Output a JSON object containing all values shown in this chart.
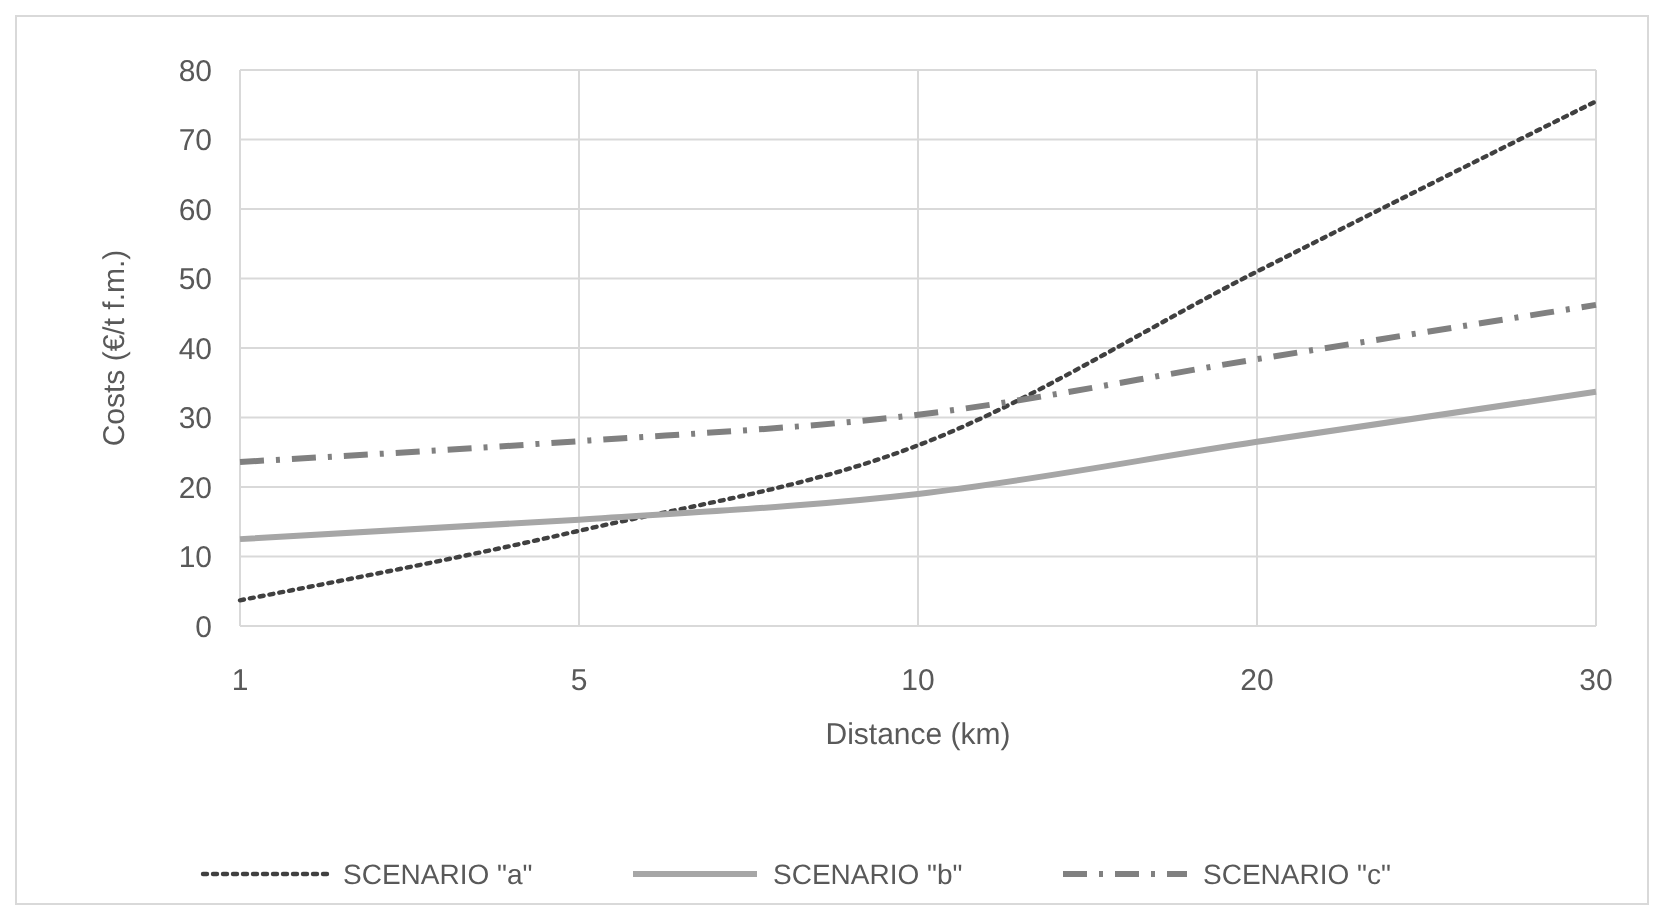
{
  "chart_data": {
    "type": "line",
    "xlabel": "Distance (km)",
    "ylabel": "Costs (€/t f.m.)",
    "categories": [
      "1",
      "5",
      "10",
      "20",
      "30"
    ],
    "series": [
      {
        "name": "SCENARIO \"a\"",
        "color": "#404040",
        "line_style": "dotted",
        "values": [
          3.7,
          13.7,
          26,
          51,
          75.5
        ]
      },
      {
        "name": "SCENARIO \"b\"",
        "color": "#a6a6a6",
        "line_style": "solid",
        "values": [
          12.5,
          15.3,
          19,
          26.5,
          33.7
        ]
      },
      {
        "name": "SCENARIO \"c\"",
        "color": "#808080",
        "line_style": "dashdot",
        "values": [
          23.6,
          26.6,
          30.4,
          38.4,
          46.2
        ]
      }
    ],
    "ylim": [
      0,
      80
    ],
    "yticks": [
      0,
      10,
      20,
      30,
      40,
      50,
      60,
      70,
      80
    ],
    "grid": true,
    "legend": "bottom"
  }
}
